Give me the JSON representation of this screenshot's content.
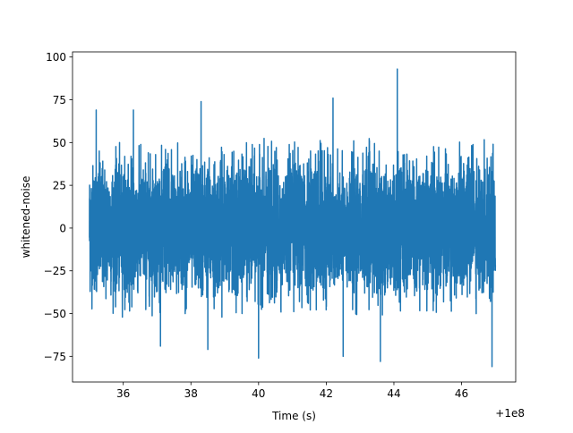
{
  "chart_data": {
    "type": "line",
    "title": "",
    "xlabel": "Time (s)",
    "ylabel": "whitened-noise",
    "x_offset_label": "+1e8",
    "xlim": [
      34.5,
      47.6
    ],
    "ylim": [
      -90,
      103
    ],
    "x_range": [
      35.0,
      47.0
    ],
    "y_envelope_typical": [
      -50,
      50
    ],
    "x_ticks": [
      {
        "value": 36,
        "label": "36"
      },
      {
        "value": 38,
        "label": "38"
      },
      {
        "value": 40,
        "label": "40"
      },
      {
        "value": 42,
        "label": "42"
      },
      {
        "value": 44,
        "label": "44"
      },
      {
        "value": 46,
        "label": "46"
      }
    ],
    "y_ticks": [
      {
        "value": 100,
        "label": "100"
      },
      {
        "value": 75,
        "label": "75"
      },
      {
        "value": 50,
        "label": "50"
      },
      {
        "value": 25,
        "label": "25"
      },
      {
        "value": 0,
        "label": "0"
      },
      {
        "value": -25,
        "label": "−25"
      },
      {
        "value": -50,
        "label": "−50"
      },
      {
        "value": -75,
        "label": "−75"
      }
    ],
    "grid": false,
    "legend": "none",
    "series": [
      {
        "color": "#1f77b4",
        "peaks": [
          {
            "x": 44.1,
            "y": 93
          },
          {
            "x": 35.2,
            "y": 69
          },
          {
            "x": 36.3,
            "y": 69
          },
          {
            "x": 38.3,
            "y": 74
          },
          {
            "x": 42.2,
            "y": 76
          },
          {
            "x": 46.9,
            "y": -81
          },
          {
            "x": 43.6,
            "y": -78
          },
          {
            "x": 40.0,
            "y": -76
          },
          {
            "x": 42.5,
            "y": -75
          },
          {
            "x": 37.1,
            "y": -69
          },
          {
            "x": 38.5,
            "y": -71
          }
        ]
      }
    ]
  }
}
